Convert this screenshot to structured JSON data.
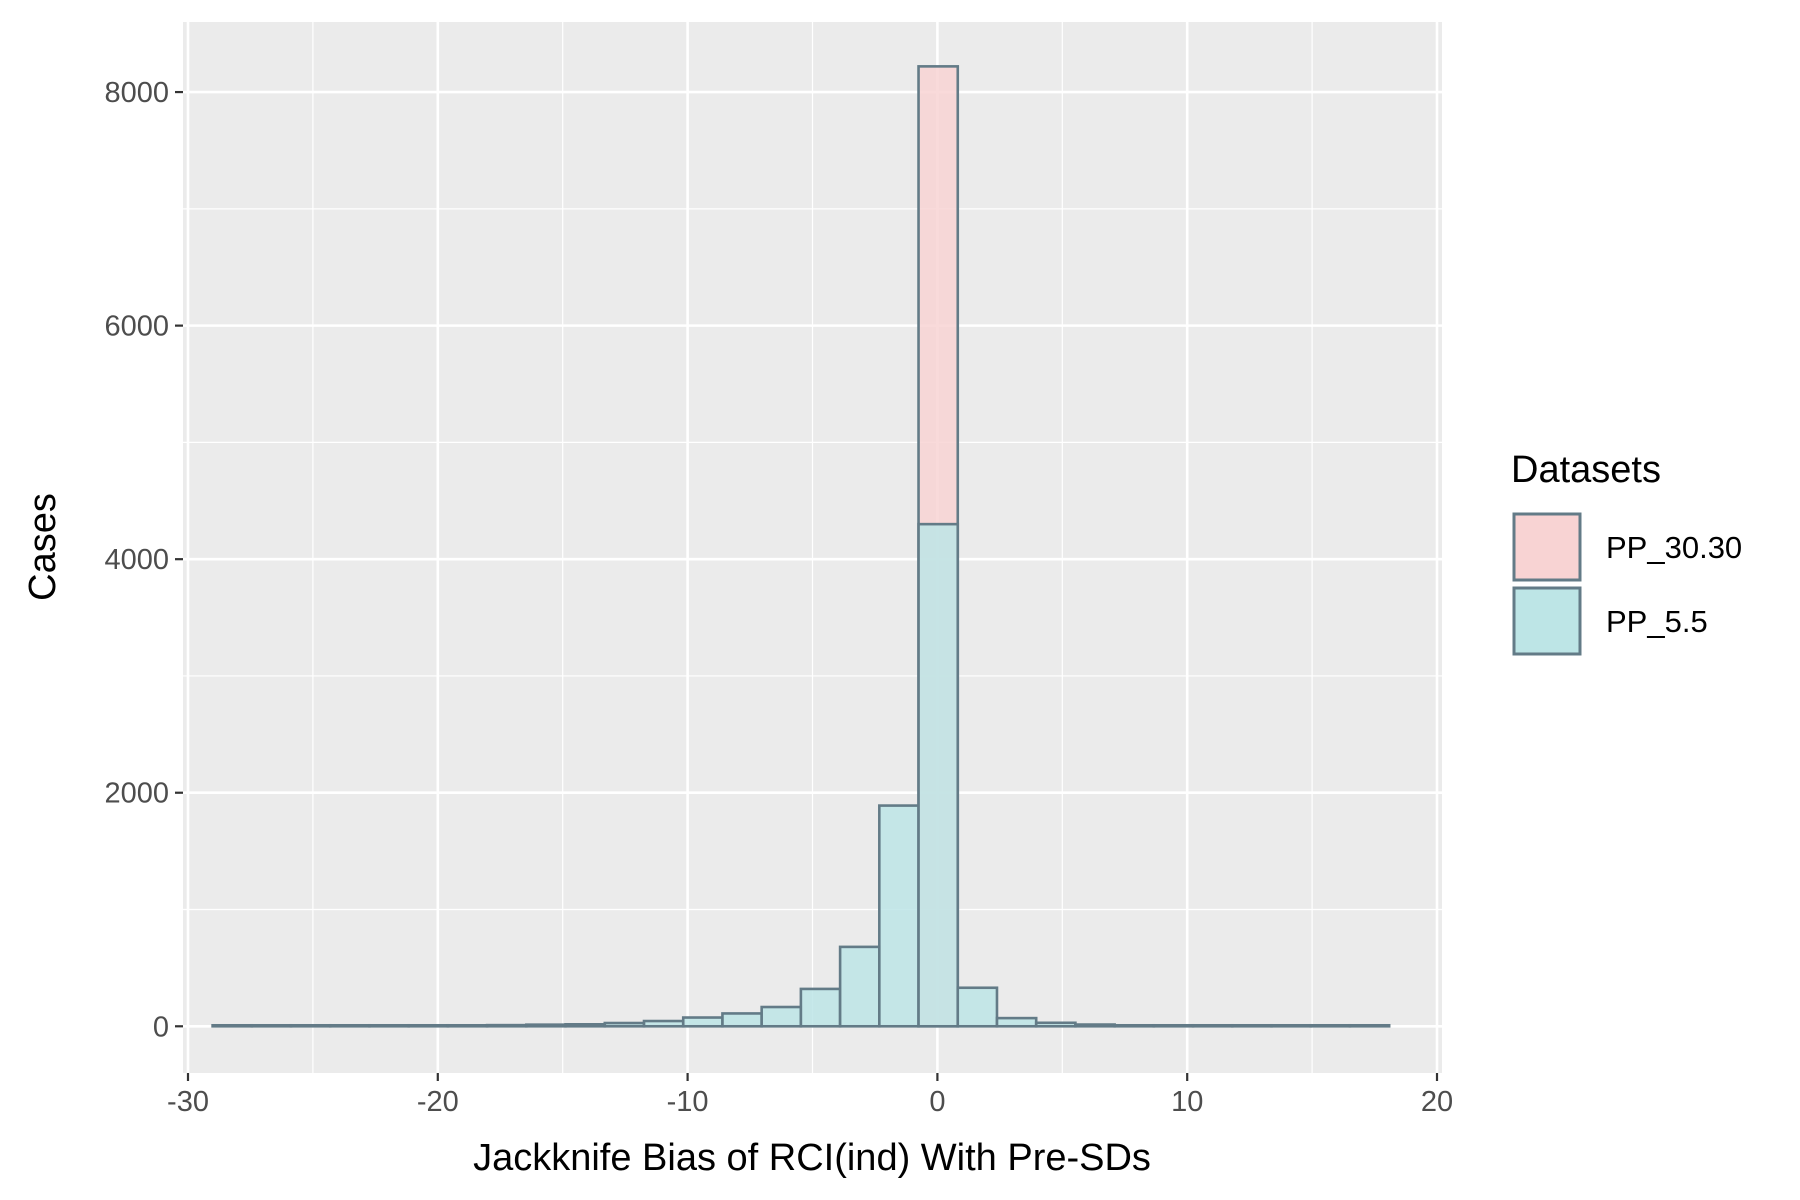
{
  "chart_data": {
    "type": "bar",
    "subtype": "overlaid-histogram",
    "xlabel": "Jackknife Bias of RCI(ind) With Pre-SDs",
    "ylabel": "Cases",
    "xlim": [
      -30.2,
      20.2
    ],
    "ylim": [
      -400,
      8600
    ],
    "x_ticks": [
      -30,
      -20,
      -10,
      0,
      10,
      20
    ],
    "y_ticks": [
      0,
      2000,
      4000,
      6000,
      8000
    ],
    "x_tick_labels": [
      "-30",
      "-20",
      "-10",
      "0",
      "10",
      "20"
    ],
    "y_tick_labels": [
      "0",
      "2000",
      "4000",
      "6000",
      "8000"
    ],
    "bin_width": 1.57,
    "bin_centers": [
      -28.23,
      -26.66,
      -25.09,
      -23.52,
      -21.95,
      -20.38,
      -18.81,
      -17.24,
      -15.67,
      -14.1,
      -12.53,
      -10.96,
      -9.39,
      -7.82,
      -6.25,
      -4.68,
      -3.11,
      -1.54,
      0.03,
      1.6,
      3.17,
      4.74,
      6.31,
      7.88,
      9.45,
      11.02,
      12.59,
      14.16,
      15.73,
      17.3
    ],
    "grid": true,
    "legend": {
      "title": "Datasets",
      "position": "right"
    },
    "series": [
      {
        "name": "PP_30.30",
        "color": "#f8d3d3",
        "values": [
          0,
          0,
          0,
          0,
          0,
          0,
          0,
          0,
          0,
          0,
          0,
          0,
          0,
          0,
          0,
          0,
          0,
          0,
          8220,
          0,
          0,
          0,
          0,
          0,
          0,
          0,
          0,
          0,
          0,
          0
        ]
      },
      {
        "name": "PP_5.5",
        "color": "#bde5e6",
        "values": [
          3,
          3,
          3,
          3,
          4,
          5,
          7,
          10,
          14,
          17,
          28,
          45,
          75,
          110,
          165,
          320,
          680,
          1890,
          4300,
          330,
          70,
          30,
          15,
          8,
          5,
          4,
          3,
          3,
          2,
          2
        ]
      }
    ],
    "outline_color": "#637b87",
    "panel_color": "#ebebeb"
  }
}
